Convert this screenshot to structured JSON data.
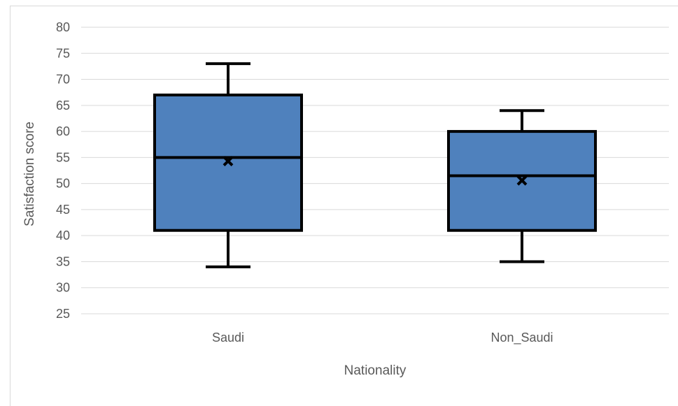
{
  "chart_data": {
    "type": "boxplot",
    "title": "",
    "xlabel": "Nationality",
    "ylabel": "Satisfaction score",
    "ylim": [
      25,
      80
    ],
    "yticks": [
      25,
      30,
      35,
      40,
      45,
      50,
      55,
      60,
      65,
      70,
      75,
      80
    ],
    "grid": true,
    "legend": "none",
    "box_color": "#4f81bd",
    "edge_color": "#000000",
    "categories": [
      "Saudi",
      "Non_Saudi"
    ],
    "boxes": [
      {
        "category": "Saudi",
        "min": 34,
        "q1": 41,
        "median": 55,
        "q3": 67,
        "max": 73,
        "mean": 54.3
      },
      {
        "category": "Non_Saudi",
        "min": 35,
        "q1": 41,
        "median": 51.5,
        "q3": 60,
        "max": 64,
        "mean": 50.6
      }
    ]
  }
}
